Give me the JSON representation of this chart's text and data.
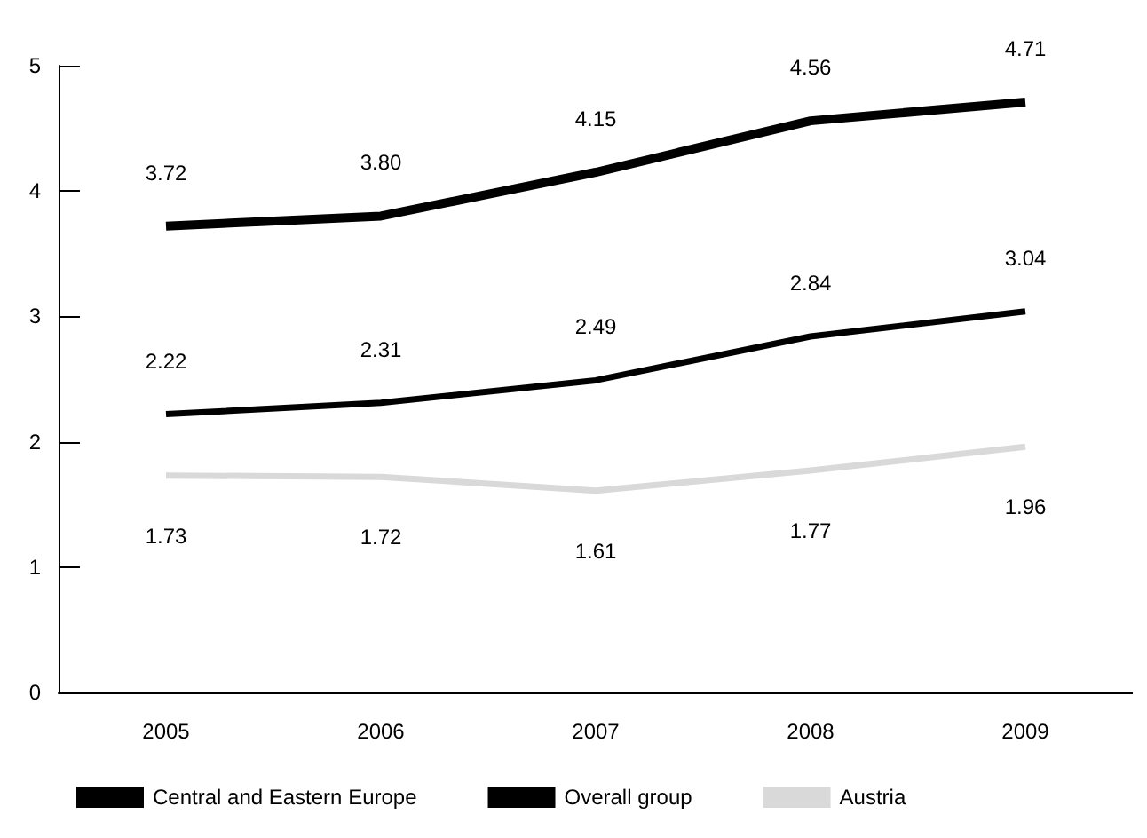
{
  "chart_data": {
    "type": "line",
    "categories": [
      "2005",
      "2006",
      "2007",
      "2008",
      "2009"
    ],
    "series": [
      {
        "name": "Central and Eastern Europe",
        "color": "#000000",
        "values": [
          3.72,
          3.8,
          4.15,
          4.56,
          4.71
        ],
        "value_labels": [
          "3.72",
          "3.80",
          "4.15",
          "4.56",
          "4.71"
        ]
      },
      {
        "name": "Overall group",
        "color": "#000000",
        "values": [
          2.22,
          2.31,
          2.49,
          2.84,
          3.04
        ],
        "value_labels": [
          "2.22",
          "2.31",
          "2.49",
          "2.84",
          "3.04"
        ]
      },
      {
        "name": "Austria",
        "color": "#d9d9d9",
        "values": [
          1.73,
          1.72,
          1.61,
          1.77,
          1.96
        ],
        "value_labels": [
          "1.73",
          "1.72",
          "1.61",
          "1.77",
          "1.96"
        ]
      }
    ],
    "ylim": [
      0,
      5
    ],
    "yticks": [
      0,
      1,
      2,
      3,
      4,
      5
    ],
    "grid": false,
    "legend": "bottom",
    "marker": "none"
  }
}
